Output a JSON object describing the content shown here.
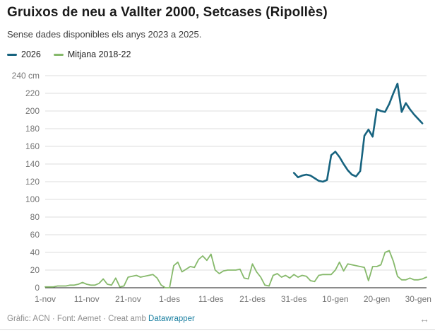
{
  "header": {
    "title": "Gruixos de neu a Vallter 2000, Setcases (Ripollès)",
    "subtitle": "Sense dades disponibles els anys 2023 a 2025."
  },
  "legend": [
    {
      "label": "2026",
      "color": "#17637f"
    },
    {
      "label": "Mitjana 2018-22",
      "color": "#86b96b"
    }
  ],
  "footer": {
    "credit": "Gràfic: ACN · Font: Aemet · Creat amb",
    "link_label": "Datawrapper",
    "resize_icon": "↔"
  },
  "colors": {
    "grid": "#dcdcdc",
    "axis": "#1a1a1a",
    "tick_text": "#757575"
  },
  "chart_data": {
    "type": "line",
    "title": "Gruixos de neu a Vallter 2000, Setcases (Ripollès)",
    "subtitle": "Sense dades disponibles els anys 2023 a 2025.",
    "unit": "cm",
    "grid": true,
    "legend_position": "top",
    "ylim": [
      0,
      240
    ],
    "y_ticks": [
      0,
      20,
      40,
      60,
      80,
      100,
      120,
      140,
      160,
      180,
      200,
      220,
      240
    ],
    "y_top_label": "240 cm",
    "x_domain_days": [
      0,
      92
    ],
    "x_tick_days": [
      0,
      10,
      20,
      30,
      40,
      50,
      60,
      70,
      80,
      90
    ],
    "x_tick_labels": [
      "1-nov",
      "11-nov",
      "21-nov",
      "1-des",
      "11-des",
      "21-des",
      "31-des",
      "10-gen",
      "20-gen",
      "30-gen"
    ],
    "series": [
      {
        "name": "2026",
        "color": "#17637f",
        "stroke_width": 2.6,
        "start_day": 60,
        "values": [
          130,
          125,
          127,
          128,
          127,
          124,
          121,
          120,
          122,
          150,
          154,
          148,
          140,
          133,
          128,
          126,
          132,
          172,
          179,
          171,
          202,
          200,
          199,
          208,
          220,
          231,
          199,
          209,
          202,
          196,
          191,
          186
        ]
      },
      {
        "name": "Mitjana 2018-22",
        "color": "#86b96b",
        "stroke_width": 1.8,
        "start_day": 0,
        "values": [
          1,
          1,
          1,
          2,
          2,
          2,
          3,
          3,
          4,
          6,
          4,
          3,
          3,
          5,
          10,
          4,
          3,
          11,
          1,
          2,
          12,
          13,
          14,
          12,
          13,
          14,
          15,
          11,
          3,
          0,
          0,
          25,
          29,
          18,
          21,
          24,
          23,
          32,
          36,
          31,
          38,
          20,
          16,
          19,
          20,
          20,
          20,
          21,
          11,
          10,
          27,
          18,
          12,
          3,
          2,
          14,
          16,
          12,
          14,
          11,
          15,
          12,
          14,
          13,
          8,
          7,
          14,
          15,
          15,
          15,
          20,
          29,
          19,
          27,
          26,
          25,
          24,
          23,
          8,
          24,
          24,
          26,
          40,
          42,
          30,
          13,
          9,
          9,
          11,
          9,
          9,
          10,
          12
        ]
      }
    ]
  }
}
